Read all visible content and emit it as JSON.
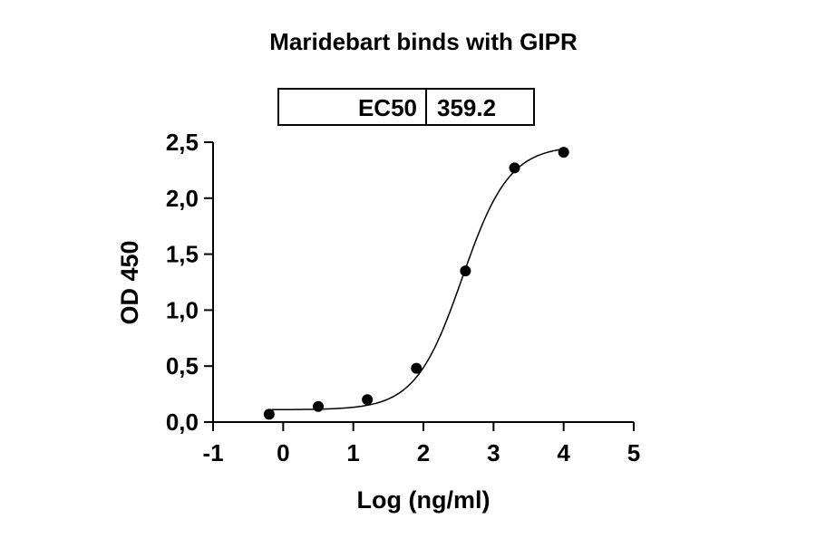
{
  "chart_data": {
    "type": "scatter",
    "title": "Maridebart binds with GIPR",
    "xlabel": "Log (ng/ml)",
    "ylabel": "OD 450",
    "xlim": [
      -1,
      5
    ],
    "ylim": [
      0,
      2.5
    ],
    "x_ticks": [
      "-1",
      "0",
      "1",
      "2",
      "3",
      "4",
      "5"
    ],
    "y_ticks": [
      "0,0",
      "0,5",
      "1,0",
      "1,5",
      "2,0",
      "2,5"
    ],
    "grid": false,
    "series": [
      {
        "x": [
          -0.2,
          0.5,
          1.2,
          1.9,
          2.6,
          3.3,
          4.0
        ],
        "y": [
          0.07,
          0.14,
          0.2,
          0.48,
          1.35,
          2.27,
          2.41
        ]
      }
    ],
    "fit_curve": {
      "type": "4PL",
      "bottom": 0.11,
      "top": 2.47,
      "log_ec50": 2.555,
      "hill_slope": 1.3
    },
    "ec50_table": {
      "label": "EC50",
      "value": "359.2"
    }
  }
}
